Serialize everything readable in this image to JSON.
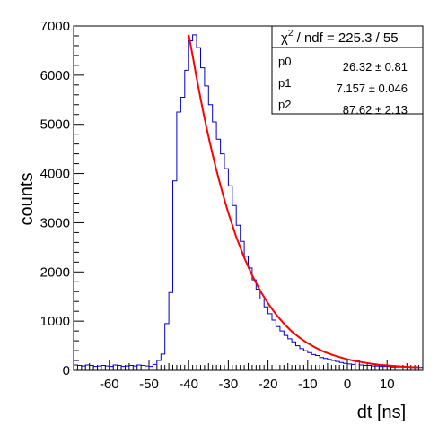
{
  "chart_data": {
    "type": "histogram",
    "xlabel": "dt [ns]",
    "ylabel": "counts",
    "xlim": [
      -69,
      19
    ],
    "ylim": [
      0,
      7000
    ],
    "x_ticks": [
      -60,
      -50,
      -40,
      -30,
      -20,
      -10,
      0,
      10
    ],
    "y_ticks": [
      0,
      1000,
      2000,
      3000,
      4000,
      5000,
      6000,
      7000
    ],
    "bin_width": 1,
    "bin_start": -69,
    "series": [
      {
        "color": "#0000cc",
        "values": [
          110,
          100,
          90,
          110,
          100,
          80,
          90,
          100,
          90,
          80,
          110,
          100,
          80,
          90,
          100,
          90,
          110,
          100,
          90,
          80,
          120,
          200,
          330,
          950,
          1580,
          3850,
          5250,
          5550,
          6100,
          6700,
          6820,
          6560,
          6150,
          5780,
          5400,
          5050,
          4700,
          4400,
          4100,
          3750,
          3350,
          2950,
          2620,
          2320,
          2080,
          1840,
          1650,
          1450,
          1290,
          1150,
          1020,
          890,
          800,
          710,
          640,
          580,
          500,
          440,
          400,
          360,
          320,
          300,
          260,
          240,
          220,
          200,
          180,
          160,
          140,
          130,
          120,
          200,
          110,
          100,
          100,
          90,
          90,
          80,
          80,
          80,
          70,
          70,
          70,
          70,
          70,
          60,
          60,
          60
        ]
      }
    ],
    "fit": {
      "color": "#ff0000",
      "function": "p0 + exp(p1 - x/p2) style exponential tail",
      "x_range": [
        -40,
        18
      ],
      "points": [
        {
          "x": -40,
          "y": 6820
        },
        {
          "x": -39,
          "y": 6400
        },
        {
          "x": -38,
          "y": 5950
        },
        {
          "x": -37,
          "y": 5520
        },
        {
          "x": -36,
          "y": 5120
        },
        {
          "x": -35,
          "y": 4750
        },
        {
          "x": -34,
          "y": 4400
        },
        {
          "x": -33,
          "y": 4070
        },
        {
          "x": -32,
          "y": 3760
        },
        {
          "x": -31,
          "y": 3470
        },
        {
          "x": -30,
          "y": 3200
        },
        {
          "x": -28,
          "y": 2710
        },
        {
          "x": -26,
          "y": 2290
        },
        {
          "x": -24,
          "y": 1930
        },
        {
          "x": -22,
          "y": 1620
        },
        {
          "x": -20,
          "y": 1360
        },
        {
          "x": -18,
          "y": 1140
        },
        {
          "x": -16,
          "y": 950
        },
        {
          "x": -14,
          "y": 790
        },
        {
          "x": -12,
          "y": 660
        },
        {
          "x": -10,
          "y": 550
        },
        {
          "x": -8,
          "y": 460
        },
        {
          "x": -6,
          "y": 380
        },
        {
          "x": -4,
          "y": 320
        },
        {
          "x": -2,
          "y": 270
        },
        {
          "x": 0,
          "y": 225
        },
        {
          "x": 2,
          "y": 190
        },
        {
          "x": 4,
          "y": 160
        },
        {
          "x": 6,
          "y": 135
        },
        {
          "x": 8,
          "y": 115
        },
        {
          "x": 10,
          "y": 100
        },
        {
          "x": 12,
          "y": 88
        },
        {
          "x": 14,
          "y": 78
        },
        {
          "x": 16,
          "y": 70
        },
        {
          "x": 18,
          "y": 64
        }
      ]
    },
    "stats_box": {
      "chi2_symbol": "χ",
      "chi2_sup": "2",
      "chi2_rest": " / ndf = 225.3 / 55",
      "rows": [
        {
          "name": "p0",
          "value": "26.32 ± 0.81"
        },
        {
          "name": "p1",
          "value": "7.157 ± 0.046"
        },
        {
          "name": "p2",
          "value": "87.62 ± 2.13"
        }
      ]
    }
  }
}
